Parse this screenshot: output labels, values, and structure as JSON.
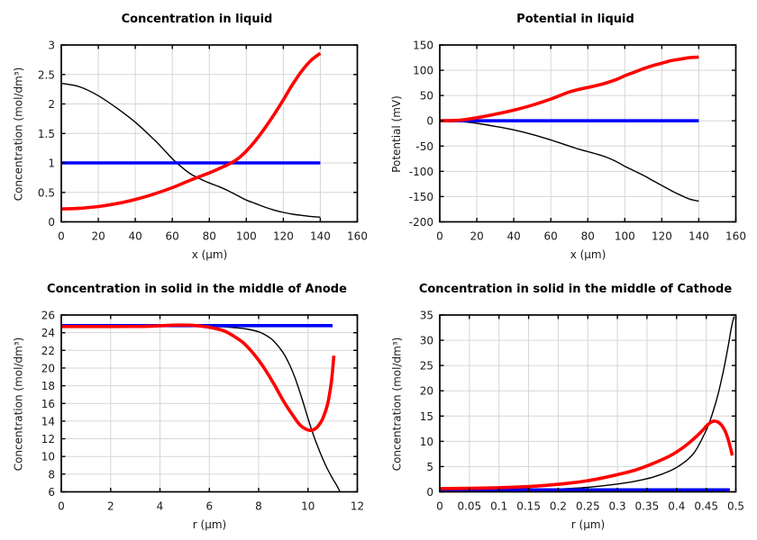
{
  "figure": {
    "background": "#ffffff",
    "rows": 2,
    "cols": 2
  },
  "colors": {
    "grid": "#d6d6d6",
    "frame": "#000000",
    "text": "#1a1a1a",
    "series_black": "#000000",
    "series_red": "#ff0000",
    "series_blue": "#0000ff"
  },
  "chart_data": [
    {
      "type": "line",
      "title": "Concentration in liquid",
      "xlabel": "x (µm)",
      "ylabel": "Concentration (mol/dm³)",
      "xlim": [
        0,
        160
      ],
      "ylim": [
        0,
        3
      ],
      "grid": true,
      "legend": "none",
      "xticks": {
        "values": [
          0,
          20,
          40,
          60,
          80,
          100,
          120,
          140,
          160
        ],
        "labels": [
          "0",
          "20",
          "40",
          "60",
          "80",
          "100",
          "120",
          "140",
          "160"
        ]
      },
      "yticks": {
        "values": [
          0,
          0.5,
          1,
          1.5,
          2,
          2.5,
          3
        ],
        "labels": [
          "0",
          "0.5",
          "1",
          "1.5",
          "2",
          "2.5",
          "3"
        ]
      },
      "series": [
        {
          "name": "black-curve",
          "color": "#000000",
          "width": 1.4,
          "points": [
            [
              0,
              2.35
            ],
            [
              10,
              2.29
            ],
            [
              20,
              2.14
            ],
            [
              30,
              1.93
            ],
            [
              40,
              1.69
            ],
            [
              50,
              1.4
            ],
            [
              55,
              1.24
            ],
            [
              60,
              1.07
            ],
            [
              65,
              0.93
            ],
            [
              70,
              0.81
            ],
            [
              75,
              0.73
            ],
            [
              80,
              0.66
            ],
            [
              85,
              0.6
            ],
            [
              90,
              0.53
            ],
            [
              95,
              0.45
            ],
            [
              100,
              0.37
            ],
            [
              105,
              0.31
            ],
            [
              110,
              0.25
            ],
            [
              115,
              0.2
            ],
            [
              120,
              0.16
            ],
            [
              125,
              0.13
            ],
            [
              130,
              0.11
            ],
            [
              135,
              0.09
            ],
            [
              140,
              0.08
            ]
          ]
        },
        {
          "name": "blue-curve",
          "color": "#0000ff",
          "width": 3.6,
          "points": [
            [
              0,
              1
            ],
            [
              140,
              1
            ]
          ]
        },
        {
          "name": "red-curve",
          "color": "#ff0000",
          "width": 3.6,
          "points": [
            [
              0,
              0.22
            ],
            [
              10,
              0.23
            ],
            [
              20,
              0.26
            ],
            [
              30,
              0.31
            ],
            [
              40,
              0.38
            ],
            [
              50,
              0.47
            ],
            [
              60,
              0.58
            ],
            [
              70,
              0.71
            ],
            [
              80,
              0.83
            ],
            [
              85,
              0.9
            ],
            [
              90,
              0.97
            ],
            [
              95,
              1.06
            ],
            [
              100,
              1.2
            ],
            [
              105,
              1.38
            ],
            [
              110,
              1.59
            ],
            [
              115,
              1.82
            ],
            [
              120,
              2.07
            ],
            [
              125,
              2.33
            ],
            [
              130,
              2.56
            ],
            [
              135,
              2.74
            ],
            [
              140,
              2.86
            ]
          ]
        }
      ]
    },
    {
      "type": "line",
      "title": "Potential in liquid",
      "xlabel": "x (µm)",
      "ylabel": "Potential (mV)",
      "xlim": [
        0,
        160
      ],
      "ylim": [
        -200,
        150
      ],
      "grid": true,
      "legend": "none",
      "xticks": {
        "values": [
          0,
          20,
          40,
          60,
          80,
          100,
          120,
          140,
          160
        ],
        "labels": [
          "0",
          "20",
          "40",
          "60",
          "80",
          "100",
          "120",
          "140",
          "160"
        ]
      },
      "yticks": {
        "values": [
          -200,
          -150,
          -100,
          -50,
          0,
          50,
          100,
          150
        ],
        "labels": [
          "-200",
          "-150",
          "-100",
          "-50",
          "0",
          "50",
          "100",
          "150"
        ]
      },
      "series": [
        {
          "name": "black-curve",
          "color": "#000000",
          "width": 1.4,
          "points": [
            [
              0,
              0
            ],
            [
              10,
              -1
            ],
            [
              20,
              -5
            ],
            [
              30,
              -11
            ],
            [
              40,
              -18
            ],
            [
              50,
              -27
            ],
            [
              60,
              -38
            ],
            [
              70,
              -50
            ],
            [
              75,
              -56
            ],
            [
              80,
              -61
            ],
            [
              85,
              -66
            ],
            [
              90,
              -72
            ],
            [
              95,
              -80
            ],
            [
              100,
              -90
            ],
            [
              105,
              -99
            ],
            [
              110,
              -108
            ],
            [
              115,
              -118
            ],
            [
              120,
              -128
            ],
            [
              125,
              -138
            ],
            [
              130,
              -147
            ],
            [
              135,
              -155
            ],
            [
              140,
              -159
            ]
          ]
        },
        {
          "name": "blue-curve",
          "color": "#0000ff",
          "width": 3.6,
          "points": [
            [
              0,
              0
            ],
            [
              140,
              0
            ]
          ]
        },
        {
          "name": "red-curve",
          "color": "#ff0000",
          "width": 3.6,
          "points": [
            [
              0,
              0
            ],
            [
              10,
              1
            ],
            [
              20,
              6
            ],
            [
              30,
              13
            ],
            [
              40,
              21
            ],
            [
              50,
              31
            ],
            [
              60,
              43
            ],
            [
              65,
              50
            ],
            [
              70,
              57
            ],
            [
              75,
              62
            ],
            [
              80,
              66
            ],
            [
              85,
              70
            ],
            [
              90,
              75
            ],
            [
              95,
              81
            ],
            [
              100,
              89
            ],
            [
              105,
              96
            ],
            [
              110,
              103
            ],
            [
              115,
              109
            ],
            [
              120,
              114
            ],
            [
              125,
              119
            ],
            [
              130,
              122
            ],
            [
              135,
              125
            ],
            [
              140,
              126
            ]
          ]
        }
      ]
    },
    {
      "type": "line",
      "title": "Concentration in solid in the middle of Anode",
      "xlabel": "r (µm)",
      "ylabel": "Concentration (mol/dm³)",
      "xlim": [
        0,
        12
      ],
      "ylim": [
        6,
        26
      ],
      "grid": true,
      "legend": "none",
      "xticks": {
        "values": [
          0,
          2,
          4,
          6,
          8,
          10,
          12
        ],
        "labels": [
          "0",
          "2",
          "4",
          "6",
          "8",
          "10",
          "12"
        ]
      },
      "yticks": {
        "values": [
          6,
          8,
          10,
          12,
          14,
          16,
          18,
          20,
          22,
          24,
          26
        ],
        "labels": [
          "6",
          "8",
          "10",
          "12",
          "14",
          "16",
          "18",
          "20",
          "22",
          "24",
          "26"
        ]
      },
      "series": [
        {
          "name": "black-curve",
          "color": "#000000",
          "width": 1.4,
          "points": [
            [
              0,
              24.75
            ],
            [
              3,
              24.75
            ],
            [
              5,
              24.75
            ],
            [
              6,
              24.72
            ],
            [
              6.5,
              24.67
            ],
            [
              7,
              24.58
            ],
            [
              7.5,
              24.42
            ],
            [
              8,
              24.1
            ],
            [
              8.3,
              23.7
            ],
            [
              8.6,
              23.1
            ],
            [
              9,
              21.7
            ],
            [
              9.25,
              20.4
            ],
            [
              9.5,
              18.7
            ],
            [
              9.75,
              16.6
            ],
            [
              10,
              14.3
            ],
            [
              10.25,
              12.2
            ],
            [
              10.5,
              10.4
            ],
            [
              10.75,
              8.8
            ],
            [
              11,
              7.5
            ],
            [
              11.15,
              6.8
            ],
            [
              11.3,
              6.0
            ]
          ]
        },
        {
          "name": "blue-curve",
          "color": "#0000ff",
          "width": 3.6,
          "points": [
            [
              0,
              24.8
            ],
            [
              11,
              24.8
            ]
          ]
        },
        {
          "name": "red-curve",
          "color": "#ff0000",
          "width": 3.6,
          "points": [
            [
              0,
              24.7
            ],
            [
              2,
              24.7
            ],
            [
              3.5,
              24.72
            ],
            [
              4.5,
              24.85
            ],
            [
              5.2,
              24.85
            ],
            [
              5.8,
              24.7
            ],
            [
              6.2,
              24.5
            ],
            [
              6.6,
              24.2
            ],
            [
              7,
              23.6
            ],
            [
              7.4,
              22.8
            ],
            [
              7.8,
              21.6
            ],
            [
              8.2,
              20.1
            ],
            [
              8.6,
              18.3
            ],
            [
              9,
              16.3
            ],
            [
              9.4,
              14.6
            ],
            [
              9.7,
              13.5
            ],
            [
              10,
              13.0
            ],
            [
              10.2,
              13.0
            ],
            [
              10.4,
              13.4
            ],
            [
              10.6,
              14.3
            ],
            [
              10.8,
              16.0
            ],
            [
              10.95,
              18.5
            ],
            [
              11.05,
              21.4
            ]
          ]
        }
      ]
    },
    {
      "type": "line",
      "title": "Concentration in solid in the middle of Cathode",
      "xlabel": "r (µm)",
      "ylabel": "Concentration (mol/dm³)",
      "xlim": [
        0,
        0.5
      ],
      "ylim": [
        0,
        35
      ],
      "grid": true,
      "legend": "none",
      "xticks": {
        "values": [
          0,
          0.05,
          0.1,
          0.15,
          0.2,
          0.25,
          0.3,
          0.35,
          0.4,
          0.45,
          0.5
        ],
        "labels": [
          "0",
          "0.05",
          "0.1",
          "0.15",
          "0.2",
          "0.25",
          "0.3",
          "0.35",
          "0.4",
          "0.45",
          "0.5"
        ]
      },
      "yticks": {
        "values": [
          0,
          5,
          10,
          15,
          20,
          25,
          30,
          35
        ],
        "labels": [
          "0",
          "5",
          "10",
          "15",
          "20",
          "25",
          "30",
          "35"
        ]
      },
      "series": [
        {
          "name": "black-curve",
          "color": "#000000",
          "width": 1.4,
          "points": [
            [
              0,
              0.2
            ],
            [
              0.05,
              0.22
            ],
            [
              0.1,
              0.28
            ],
            [
              0.15,
              0.38
            ],
            [
              0.2,
              0.55
            ],
            [
              0.25,
              0.9
            ],
            [
              0.3,
              1.55
            ],
            [
              0.33,
              2.1
            ],
            [
              0.36,
              2.9
            ],
            [
              0.39,
              4.2
            ],
            [
              0.41,
              5.6
            ],
            [
              0.43,
              7.8
            ],
            [
              0.45,
              12.2
            ],
            [
              0.46,
              15.3
            ],
            [
              0.47,
              19.3
            ],
            [
              0.48,
              24.5
            ],
            [
              0.487,
              28.8
            ],
            [
              0.493,
              32.8
            ],
            [
              0.497,
              34.7
            ]
          ]
        },
        {
          "name": "blue-curve",
          "color": "#0000ff",
          "width": 3.6,
          "points": [
            [
              0,
              0.4
            ],
            [
              0.49,
              0.4
            ]
          ]
        },
        {
          "name": "red-curve",
          "color": "#ff0000",
          "width": 3.6,
          "points": [
            [
              0,
              0.65
            ],
            [
              0.05,
              0.7
            ],
            [
              0.1,
              0.82
            ],
            [
              0.15,
              1.05
            ],
            [
              0.2,
              1.5
            ],
            [
              0.25,
              2.2
            ],
            [
              0.3,
              3.4
            ],
            [
              0.33,
              4.3
            ],
            [
              0.36,
              5.6
            ],
            [
              0.39,
              7.2
            ],
            [
              0.41,
              8.7
            ],
            [
              0.43,
              10.6
            ],
            [
              0.445,
              12.3
            ],
            [
              0.45,
              13.0
            ],
            [
              0.457,
              13.7
            ],
            [
              0.463,
              14.0
            ],
            [
              0.47,
              13.8
            ],
            [
              0.476,
              13.2
            ],
            [
              0.482,
              12.0
            ],
            [
              0.487,
              10.4
            ],
            [
              0.491,
              8.7
            ],
            [
              0.494,
              7.2
            ]
          ]
        }
      ]
    }
  ]
}
